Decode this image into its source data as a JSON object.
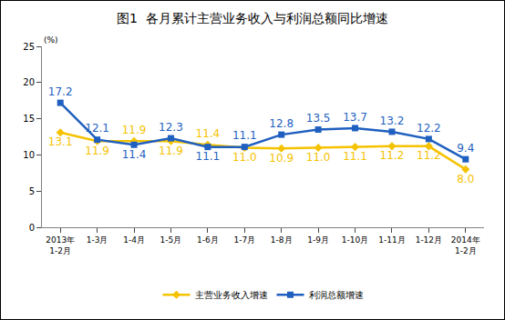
{
  "chart_data": {
    "type": "line",
    "title": "图1  各月累计主营业务收入与利润总额同比增速",
    "y_label": "(%)",
    "categories": [
      "2013年1-2月",
      "1-3月",
      "1-4月",
      "1-5月",
      "1-6月",
      "1-7月",
      "1-8月",
      "1-9月",
      "1-10月",
      "1-11月",
      "1-12月",
      "2014年1-2月"
    ],
    "series": [
      {
        "name": "主营业务收入增速",
        "color": "#F5C200",
        "marker": "diamond",
        "values": [
          13.1,
          11.9,
          11.9,
          11.9,
          11.4,
          11.0,
          10.9,
          11.0,
          11.1,
          11.2,
          11.2,
          8.0
        ],
        "value_labels": [
          "13.1",
          "11.9",
          "11.9",
          "11.9",
          "11.4",
          "11.0",
          "10.9",
          "11.0",
          "11.1",
          "11.2",
          "11.2",
          "8.0"
        ]
      },
      {
        "name": "利润总额增速",
        "color": "#1F5FBF",
        "marker": "square",
        "values": [
          17.2,
          12.1,
          11.4,
          12.3,
          11.1,
          11.1,
          12.8,
          13.5,
          13.7,
          13.2,
          12.2,
          9.4
        ],
        "value_labels": [
          "17.2",
          "12.1",
          "11.4",
          "12.3",
          "11.1",
          "11.1",
          "12.8",
          "13.5",
          "13.7",
          "13.2",
          "12.2",
          "9.4"
        ]
      }
    ],
    "ylim": [
      0,
      25
    ],
    "yticks": [
      0,
      5,
      10,
      15,
      20,
      25
    ],
    "grid": false,
    "legend": "bottom",
    "data_labels": true
  }
}
